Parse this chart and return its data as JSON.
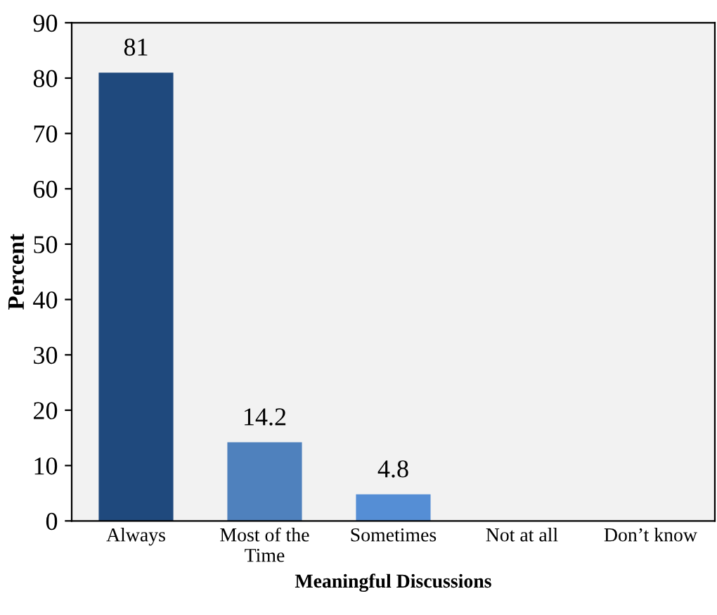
{
  "chart_data": {
    "type": "bar",
    "categories": [
      "Always",
      "Most of the\nTime",
      "Sometimes",
      "Not at all",
      "Don’t know"
    ],
    "values": [
      81,
      14.2,
      4.8,
      0,
      0
    ],
    "colors": [
      "#1f497d",
      "#4f81bd",
      "#558ed5",
      "#558ed5",
      "#558ed5"
    ],
    "value_labels": [
      "81",
      "14.2",
      "4.8",
      null,
      null
    ],
    "ylabel": "Percent",
    "xlabel": "Meaningful Discussions",
    "ylim": [
      0,
      90
    ],
    "yticks": [
      0,
      10,
      20,
      30,
      40,
      50,
      60,
      70,
      80,
      90
    ],
    "grid": false,
    "legend": false
  }
}
